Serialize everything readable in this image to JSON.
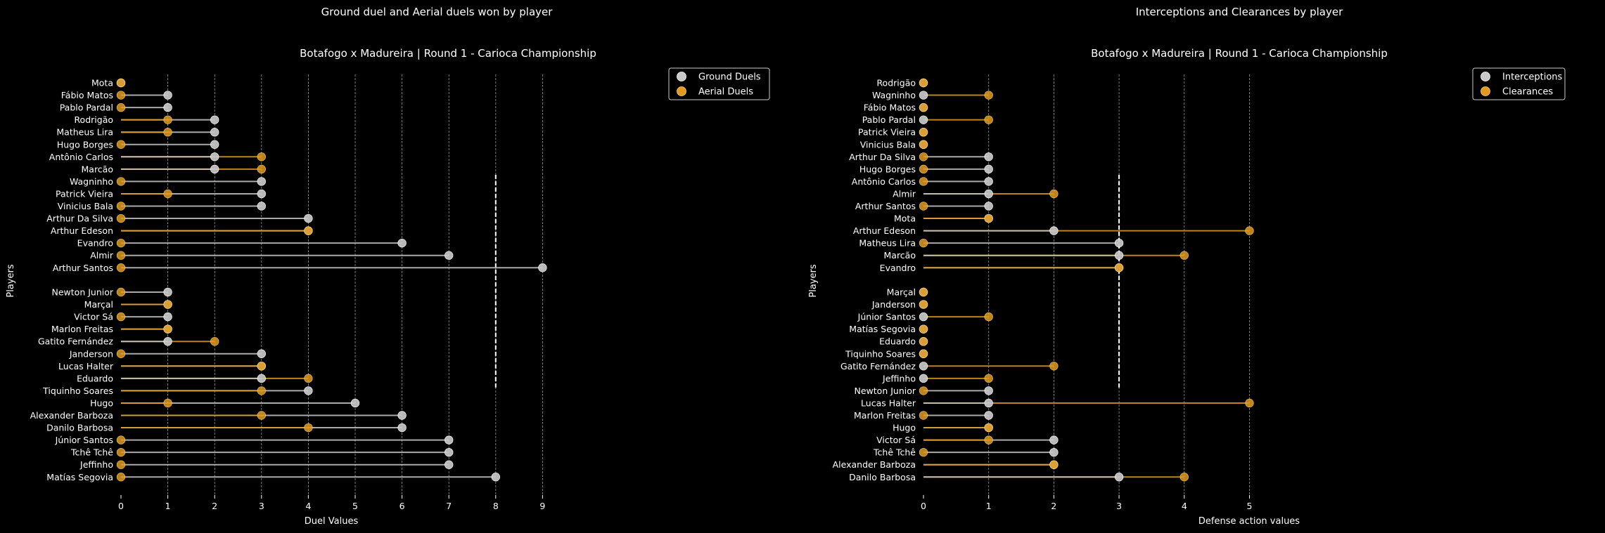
{
  "colors": {
    "background": "#000000",
    "ground": "#c8c8c8",
    "aerial": "#e09a22",
    "text": "#ffffff",
    "grid": "#bbbbbb"
  },
  "chart_data": [
    {
      "type": "lollipop",
      "suptitle": "Ground duel and Aerial duels won by player",
      "title": "Botafogo x Madureira | Round 1 - Carioca Championship",
      "xlabel": "Duel Values",
      "ylabel": "Players",
      "xlim": [
        0,
        9
      ],
      "xticks": [
        "0",
        "1",
        "2",
        "3",
        "4",
        "5",
        "6",
        "7",
        "8",
        "9"
      ],
      "grid": "vertical dashed",
      "legend_position": "top-right",
      "series": [
        {
          "name": "Ground Duels",
          "key": "ground"
        },
        {
          "name": "Aerial Duels",
          "key": "aerial"
        }
      ],
      "divider_x": 8,
      "groups": [
        {
          "players": [
            {
              "name": "Mota",
              "ground": 0,
              "aerial": 0
            },
            {
              "name": "Fábio Matos",
              "ground": 1,
              "aerial": 0
            },
            {
              "name": "Pablo Pardal",
              "ground": 1,
              "aerial": 0
            },
            {
              "name": "Rodrigão",
              "ground": 2,
              "aerial": 1
            },
            {
              "name": "Matheus Lira",
              "ground": 2,
              "aerial": 1
            },
            {
              "name": "Hugo Borges",
              "ground": 2,
              "aerial": 0
            },
            {
              "name": "Antônio Carlos",
              "ground": 2,
              "aerial": 3
            },
            {
              "name": "Marcão",
              "ground": 2,
              "aerial": 3
            },
            {
              "name": "Wagninho",
              "ground": 3,
              "aerial": 0
            },
            {
              "name": "Patrick Vieira",
              "ground": 3,
              "aerial": 1
            },
            {
              "name": "Vinicius Bala",
              "ground": 3,
              "aerial": 0
            },
            {
              "name": "Arthur Da Silva",
              "ground": 4,
              "aerial": 0
            },
            {
              "name": "Arthur Edeson",
              "ground": 4,
              "aerial": 4
            },
            {
              "name": "Evandro",
              "ground": 6,
              "aerial": 0
            },
            {
              "name": "Almir",
              "ground": 7,
              "aerial": 0
            },
            {
              "name": "Arthur Santos",
              "ground": 9,
              "aerial": 0
            }
          ]
        },
        {
          "players": [
            {
              "name": "Newton Junior",
              "ground": 1,
              "aerial": 0
            },
            {
              "name": "Marçal",
              "ground": 1,
              "aerial": 1
            },
            {
              "name": "Victor Sá",
              "ground": 1,
              "aerial": 0
            },
            {
              "name": "Marlon Freitas",
              "ground": 1,
              "aerial": 1
            },
            {
              "name": "Gatito Fernández",
              "ground": 1,
              "aerial": 2
            },
            {
              "name": "Janderson",
              "ground": 3,
              "aerial": 0
            },
            {
              "name": "Lucas Halter",
              "ground": 3,
              "aerial": 3
            },
            {
              "name": "Eduardo",
              "ground": 3,
              "aerial": 4
            },
            {
              "name": "Tiquinho Soares",
              "ground": 4,
              "aerial": 3
            },
            {
              "name": "Hugo",
              "ground": 5,
              "aerial": 1
            },
            {
              "name": "Alexander Barboza",
              "ground": 6,
              "aerial": 3
            },
            {
              "name": "Danilo Barbosa",
              "ground": 6,
              "aerial": 4
            },
            {
              "name": "Júnior Santos",
              "ground": 7,
              "aerial": 0
            },
            {
              "name": "Tchê Tchê",
              "ground": 7,
              "aerial": 0
            },
            {
              "name": "Jeffinho",
              "ground": 7,
              "aerial": 0
            },
            {
              "name": "Matías Segovia",
              "ground": 8,
              "aerial": 0
            }
          ]
        }
      ]
    },
    {
      "type": "lollipop",
      "suptitle": "Interceptions and Clearances by player",
      "title": "Botafogo x Madureira | Round 1 - Carioca Championship",
      "xlabel": "Defense action values",
      "ylabel": "Players",
      "xlim": [
        0,
        5
      ],
      "xticks": [
        "0",
        "1",
        "2",
        "3",
        "4",
        "5"
      ],
      "grid": "vertical dashed",
      "legend_position": "top-right",
      "series": [
        {
          "name": "Interceptions",
          "key": "ground"
        },
        {
          "name": "Clearances",
          "key": "aerial"
        }
      ],
      "divider_x": 3,
      "groups": [
        {
          "players": [
            {
              "name": "Rodrigão",
              "ground": 0,
              "aerial": 0
            },
            {
              "name": "Wagninho",
              "ground": 0,
              "aerial": 1
            },
            {
              "name": "Fábio Matos",
              "ground": 0,
              "aerial": 0
            },
            {
              "name": "Pablo Pardal",
              "ground": 0,
              "aerial": 1
            },
            {
              "name": "Patrick Vieira",
              "ground": 0,
              "aerial": 0
            },
            {
              "name": "Vinicius Bala",
              "ground": 0,
              "aerial": 0
            },
            {
              "name": "Arthur Da Silva",
              "ground": 1,
              "aerial": 0
            },
            {
              "name": "Hugo Borges",
              "ground": 1,
              "aerial": 0
            },
            {
              "name": "Antônio Carlos",
              "ground": 1,
              "aerial": 0
            },
            {
              "name": "Almir",
              "ground": 1,
              "aerial": 2
            },
            {
              "name": "Arthur Santos",
              "ground": 1,
              "aerial": 0
            },
            {
              "name": "Mota",
              "ground": 1,
              "aerial": 1
            },
            {
              "name": "Arthur Edeson",
              "ground": 2,
              "aerial": 5
            },
            {
              "name": "Matheus Lira",
              "ground": 3,
              "aerial": 0
            },
            {
              "name": "Marcão",
              "ground": 3,
              "aerial": 4
            },
            {
              "name": "Evandro",
              "ground": 3,
              "aerial": 3
            }
          ]
        },
        {
          "players": [
            {
              "name": "Marçal",
              "ground": 0,
              "aerial": 0
            },
            {
              "name": "Janderson",
              "ground": 0,
              "aerial": 0
            },
            {
              "name": "Júnior Santos",
              "ground": 0,
              "aerial": 1
            },
            {
              "name": "Matías Segovia",
              "ground": 0,
              "aerial": 0
            },
            {
              "name": "Eduardo",
              "ground": 0,
              "aerial": 0
            },
            {
              "name": "Tiquinho Soares",
              "ground": 0,
              "aerial": 0
            },
            {
              "name": "Gatito Fernández",
              "ground": 0,
              "aerial": 2
            },
            {
              "name": "Jeffinho",
              "ground": 0,
              "aerial": 1
            },
            {
              "name": "Newton Junior",
              "ground": 1,
              "aerial": 0
            },
            {
              "name": "Lucas Halter",
              "ground": 1,
              "aerial": 5
            },
            {
              "name": "Marlon Freitas",
              "ground": 1,
              "aerial": 0
            },
            {
              "name": "Hugo",
              "ground": 1,
              "aerial": 1
            },
            {
              "name": "Victor Sá",
              "ground": 2,
              "aerial": 1
            },
            {
              "name": "Tchê Tchê",
              "ground": 2,
              "aerial": 0
            },
            {
              "name": "Alexander Barboza",
              "ground": 2,
              "aerial": 2
            },
            {
              "name": "Danilo Barbosa",
              "ground": 3,
              "aerial": 4
            }
          ]
        }
      ]
    }
  ]
}
